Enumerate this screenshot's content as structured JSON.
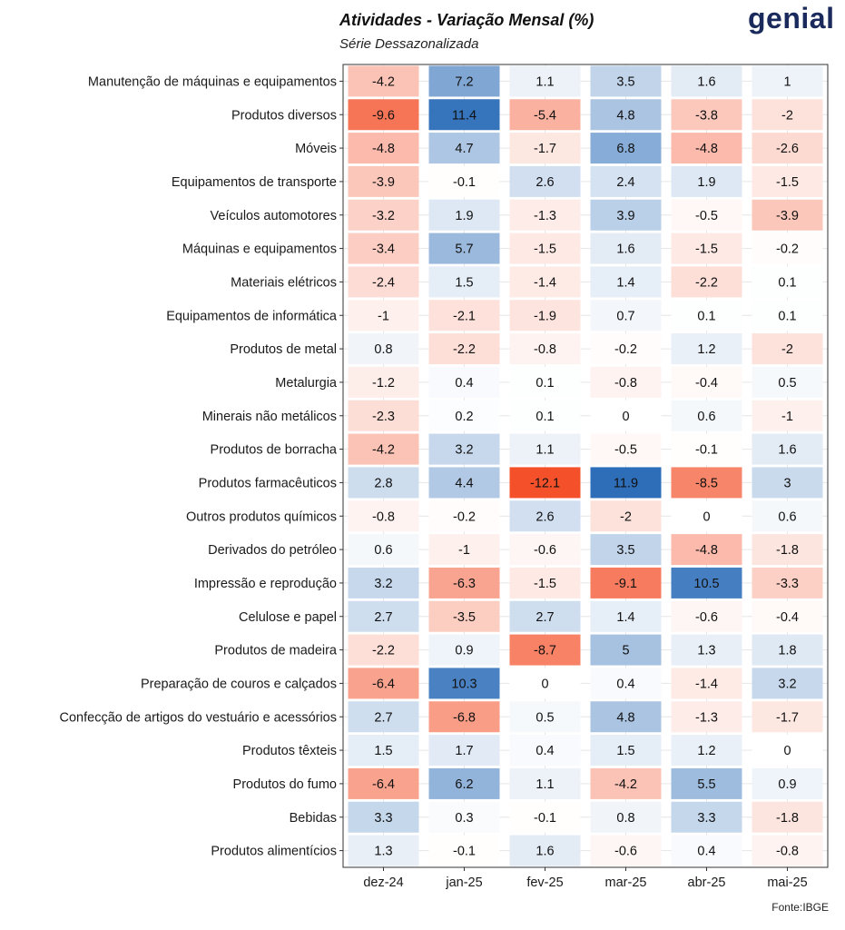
{
  "title": "Atividades - Variação Mensal (%)",
  "subtitle": "Série Dessazonalizada",
  "logo": "genial",
  "source": "Fonte:IBGE",
  "chart_data": {
    "type": "heatmap",
    "categories_x": [
      "dez-24",
      "jan-25",
      "fev-25",
      "mar-25",
      "abr-25",
      "mai-25"
    ],
    "categories_y": [
      "Manutenção de máquinas e equipamentos",
      "Produtos diversos",
      "Móveis",
      "Equipamentos de transporte",
      "Veículos automotores",
      "Máquinas e equipamentos",
      "Materiais elétricos",
      "Equipamentos de informática",
      "Produtos de metal",
      "Metalurgia",
      "Minerais não metálicos",
      "Produtos de borracha",
      "Produtos farmacêuticos",
      "Outros produtos químicos",
      "Derivados do petróleo",
      "Impressão e reprodução",
      "Celulose e papel",
      "Produtos de madeira",
      "Preparação de couros e calçados",
      "Confecção de artigos do vestuário e acessórios",
      "Produtos têxteis",
      "Produtos do fumo",
      "Bebidas",
      "Produtos alimentícios"
    ],
    "values": [
      [
        -4.2,
        7.2,
        1.1,
        3.5,
        1.6,
        1
      ],
      [
        -9.6,
        11.4,
        -5.4,
        4.8,
        -3.8,
        -2
      ],
      [
        -4.8,
        4.7,
        -1.7,
        6.8,
        -4.8,
        -2.6
      ],
      [
        -3.9,
        -0.1,
        2.6,
        2.4,
        1.9,
        -1.5
      ],
      [
        -3.2,
        1.9,
        -1.3,
        3.9,
        -0.5,
        -3.9
      ],
      [
        -3.4,
        5.7,
        -1.5,
        1.6,
        -1.5,
        -0.2
      ],
      [
        -2.4,
        1.5,
        -1.4,
        1.4,
        -2.2,
        0.1
      ],
      [
        -1,
        -2.1,
        -1.9,
        0.7,
        0.1,
        0.1
      ],
      [
        0.8,
        -2.2,
        -0.8,
        -0.2,
        1.2,
        -2
      ],
      [
        -1.2,
        0.4,
        0.1,
        -0.8,
        -0.4,
        0.5
      ],
      [
        -2.3,
        0.2,
        0.1,
        0,
        0.6,
        -1
      ],
      [
        -4.2,
        3.2,
        1.1,
        -0.5,
        -0.1,
        1.6
      ],
      [
        2.8,
        4.4,
        -12.1,
        11.9,
        -8.5,
        3
      ],
      [
        -0.8,
        -0.2,
        2.6,
        -2,
        0,
        0.6
      ],
      [
        0.6,
        -1,
        -0.6,
        3.5,
        -4.8,
        -1.8
      ],
      [
        3.2,
        -6.3,
        -1.5,
        -9.1,
        10.5,
        -3.3
      ],
      [
        2.7,
        -3.5,
        2.7,
        1.4,
        -0.6,
        -0.4
      ],
      [
        -2.2,
        0.9,
        -8.7,
        5,
        1.3,
        1.8
      ],
      [
        -6.4,
        10.3,
        0,
        0.4,
        -1.4,
        3.2
      ],
      [
        2.7,
        -6.8,
        0.5,
        4.8,
        -1.3,
        -1.7
      ],
      [
        1.5,
        1.7,
        0.4,
        1.5,
        1.2,
        0
      ],
      [
        -6.4,
        6.2,
        1.1,
        -4.2,
        5.5,
        0.9
      ],
      [
        3.3,
        0.3,
        -0.1,
        0.8,
        3.3,
        -1.8
      ],
      [
        1.3,
        -0.1,
        1.6,
        -0.6,
        0.4,
        -0.8
      ]
    ],
    "colors": {
      "negative": "#f4512a",
      "neutral": "#ffffff",
      "positive": "#2a6bb7",
      "grid": "#e6e6e6",
      "panel_border": "#333333"
    },
    "legend": "none"
  }
}
